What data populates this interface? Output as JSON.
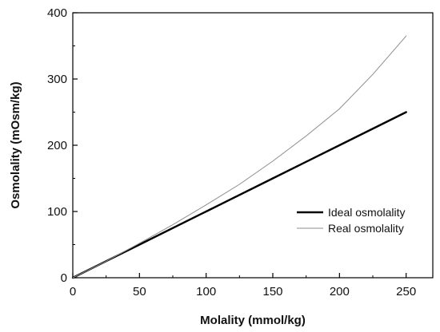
{
  "chart_data": {
    "type": "line",
    "xlabel": "Molality (mmol/kg)",
    "ylabel": "Osmolality (mOsm/kg)",
    "xlim": [
      0,
      270
    ],
    "ylim": [
      0,
      400
    ],
    "x_ticks": [
      0,
      50,
      100,
      150,
      200,
      250
    ],
    "y_ticks": [
      0,
      100,
      200,
      300,
      400
    ],
    "x_minor_step": 25,
    "y_minor_step": 50,
    "grid": false,
    "legend_position": "lower-right",
    "series": [
      {
        "name": "Ideal osmolality",
        "color": "#000000",
        "style": "thick",
        "x": [
          0,
          50,
          100,
          150,
          200,
          250
        ],
        "y": [
          0,
          50,
          100,
          150,
          200,
          250
        ]
      },
      {
        "name": "Real osmolality",
        "color": "#8c8c8c",
        "style": "thin",
        "x": [
          0,
          25,
          50,
          75,
          100,
          125,
          150,
          175,
          200,
          225,
          250
        ],
        "y": [
          0,
          25,
          52,
          80,
          110,
          141,
          176,
          214,
          255,
          307,
          365
        ]
      }
    ]
  }
}
